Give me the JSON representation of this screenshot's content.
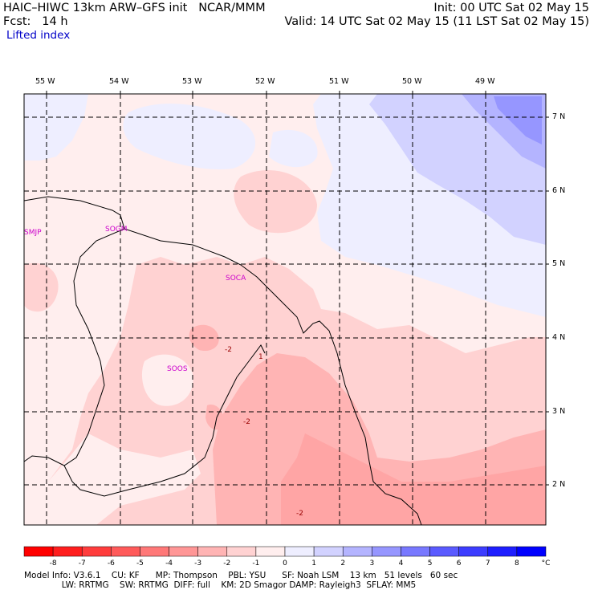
{
  "header": {
    "line1_left": "HAIC–HIWC 13km ARW–GFS init   NCAR/MMM",
    "line1_right": "Init: 00 UTC Sat 02 May 15",
    "line2_left": "Fcst:   14 h",
    "line2_right": "Valid: 14 UTC Sat 02 May 15 (11 LST Sat 02 May 15)",
    "field": "Lifted index"
  },
  "lon_labels": [
    "55 W",
    "54 W",
    "53 W",
    "52 W",
    "51 W",
    "50 W",
    "49 W"
  ],
  "lat_labels": [
    "7 N",
    "6 N",
    "5 N",
    "4 N",
    "3 N",
    "2 N"
  ],
  "stations": [
    "SMJP",
    "SOGM",
    "SOCA",
    "SOOS"
  ],
  "contour_labels": [
    "-2",
    "-2",
    "-2",
    "1"
  ],
  "colorbar": {
    "ticks": [
      "-8",
      "-7",
      "-6",
      "-5",
      "-4",
      "-3",
      "-2",
      "-1",
      "0",
      "1",
      "2",
      "3",
      "4",
      "5",
      "6",
      "7",
      "8"
    ],
    "unit": "°C",
    "colors": [
      "#ff0000",
      "#ff1e1e",
      "#ff3c3c",
      "#ff5a5a",
      "#ff7878",
      "#ff9696",
      "#ffb4b4",
      "#ffd2d2",
      "#ffeeee",
      "#eeeeff",
      "#d2d2ff",
      "#b4b4ff",
      "#9696ff",
      "#7878ff",
      "#5a5aff",
      "#3c3cff",
      "#1e1eff",
      "#0000ff"
    ]
  },
  "footer": {
    "line1": "Model Info: V3.6.1    CU: KF      MP: Thompson    PBL: YSU      SF: Noah LSM    13 km   51 levels   60 sec",
    "line2": "              LW: RRTMG    SW: RRTMG  DIFF: full    KM: 2D Smagor DAMP: Rayleigh3  SFLAY: MM5"
  },
  "palette": {
    "gt0": "#ffeeee",
    "m1": "#ffd2d2",
    "m2": "#ffb4b4",
    "p0": "#eeeeff",
    "p1": "#d2d2ff",
    "p2": "#b4b4ff",
    "p3": "#9696ff",
    "station": "#cc00cc",
    "label": "#990000"
  }
}
